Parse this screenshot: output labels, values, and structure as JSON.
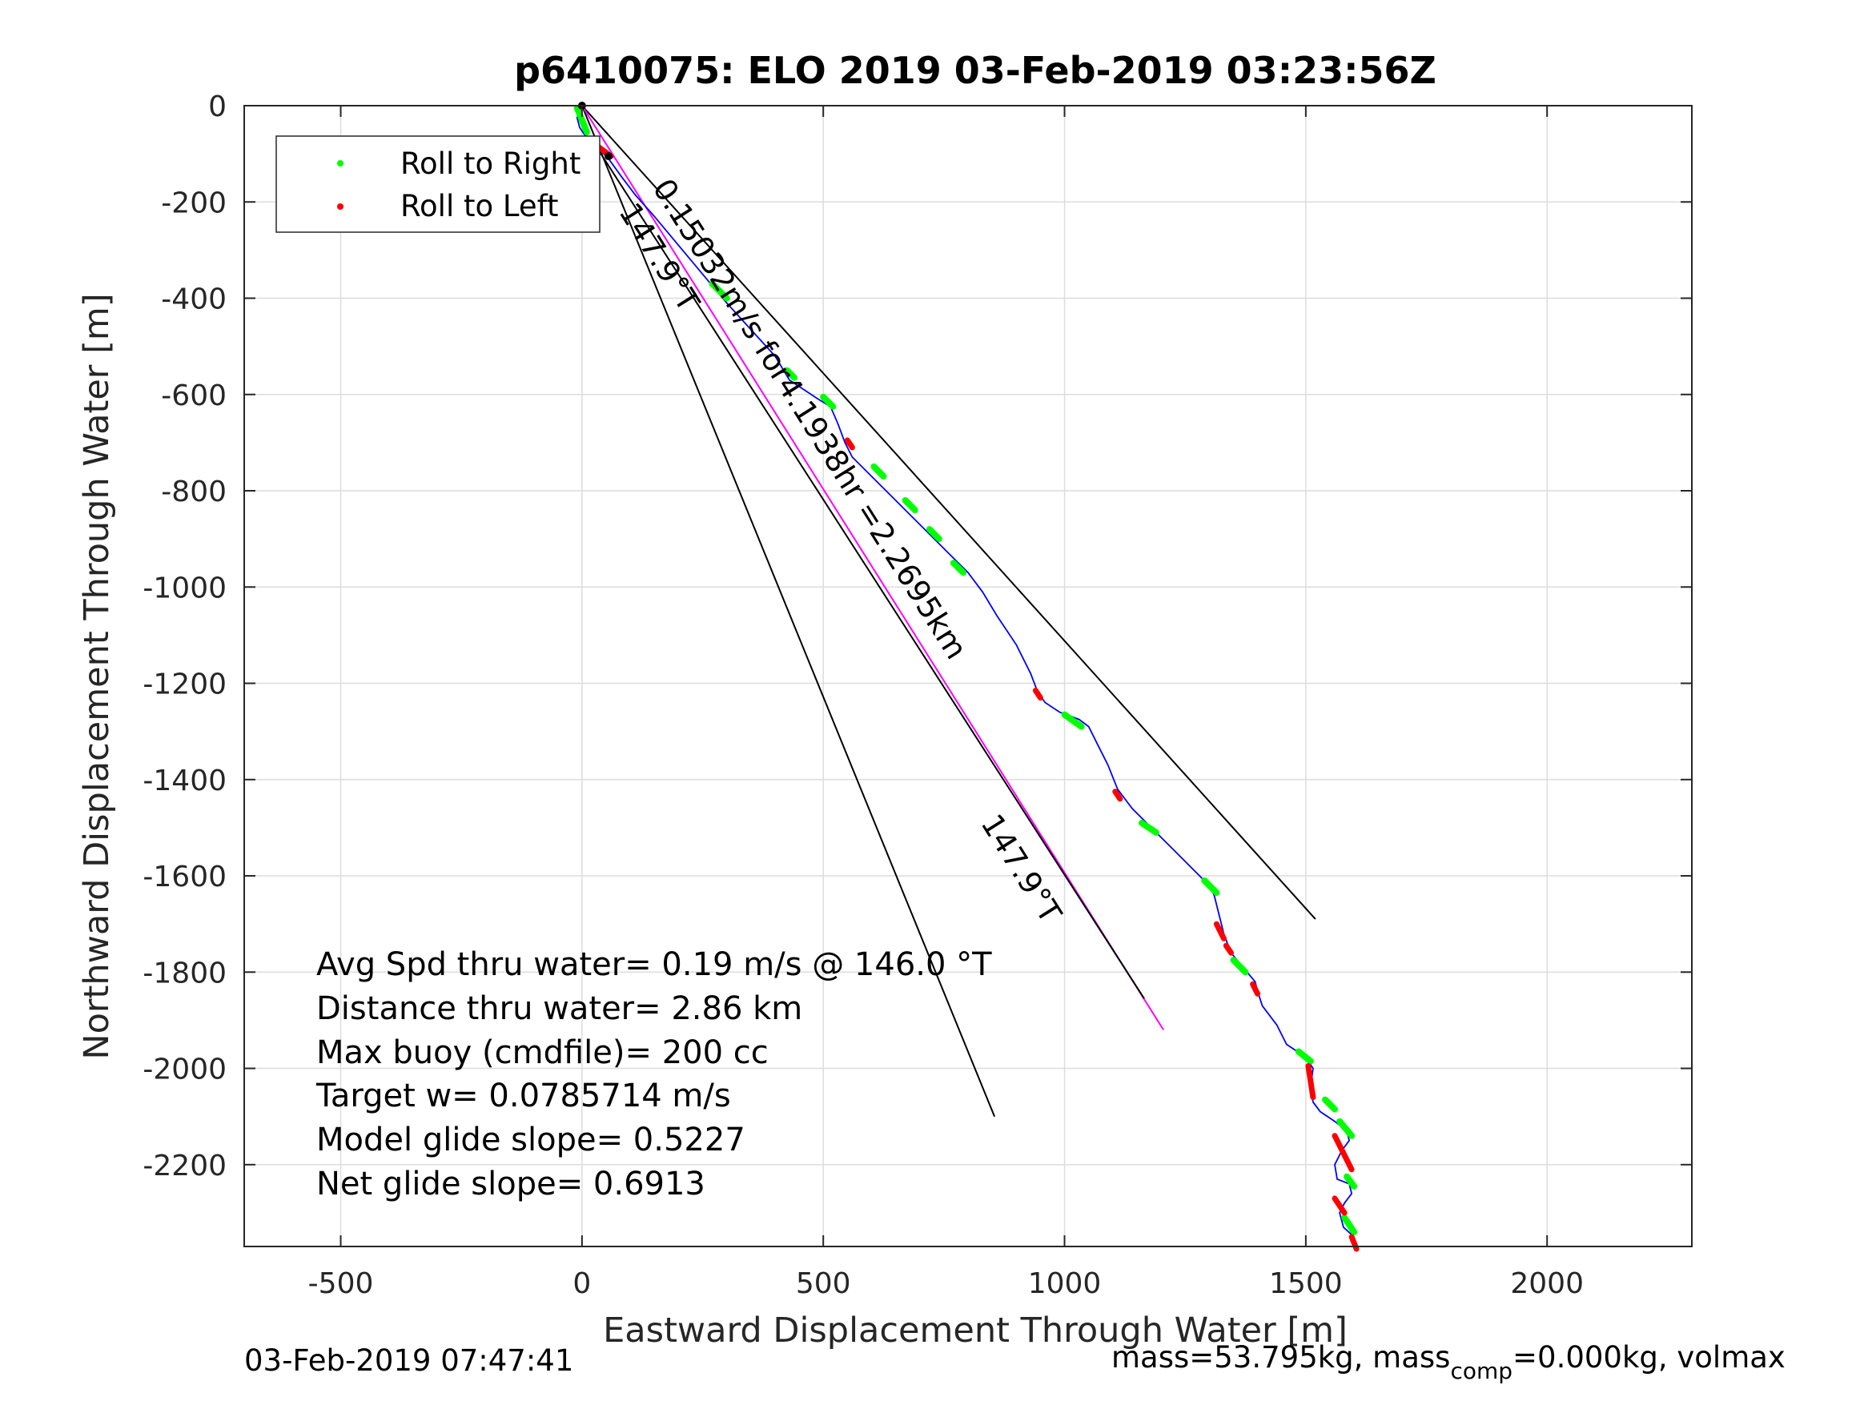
{
  "chart_data": {
    "type": "line",
    "title": "p6410075: ELO 2019 03-Feb-2019 03:23:56Z",
    "xlabel": "Eastward Displacement Through Water [m]",
    "ylabel": "Northward Displacement Through Water [m]",
    "xlim": [
      -700,
      2300
    ],
    "ylim": [
      -2370,
      0
    ],
    "xticks": [
      -500,
      0,
      500,
      1000,
      1500,
      2000
    ],
    "yticks": [
      0,
      -200,
      -400,
      -600,
      -800,
      -1000,
      -1200,
      -1400,
      -1600,
      -1800,
      -2000,
      -2200
    ],
    "grid": true,
    "legend": {
      "position": "top-left",
      "entries": [
        {
          "label": "Roll to Right",
          "color": "#00ff00"
        },
        {
          "label": "Roll to Left",
          "color": "#ff0000"
        }
      ]
    },
    "track": {
      "color": "#0000ff",
      "x": [
        0,
        -5,
        -10,
        -5,
        5,
        20,
        40,
        55,
        80,
        110,
        150,
        200,
        250,
        300,
        350,
        400,
        430,
        460,
        490,
        515,
        530,
        545,
        560,
        600,
        640,
        680,
        720,
        760,
        800,
        830,
        860,
        900,
        930,
        945,
        960,
        990,
        1030,
        1050,
        1070,
        1090,
        1110,
        1140,
        1180,
        1220,
        1260,
        1300,
        1310,
        1320,
        1330,
        1345,
        1370,
        1395,
        1400,
        1410,
        1440,
        1460,
        1475,
        1490,
        1505,
        1515,
        1510,
        1515,
        1530,
        1560,
        1585,
        1590,
        1575,
        1560,
        1565,
        1590,
        1595,
        1580,
        1570,
        1578,
        1600,
        1598
      ],
      "y": [
        0,
        -10,
        -25,
        -45,
        -60,
        -75,
        -95,
        -110,
        -145,
        -185,
        -230,
        -290,
        -350,
        -410,
        -465,
        -520,
        -570,
        -590,
        -610,
        -625,
        -660,
        -700,
        -730,
        -770,
        -810,
        -850,
        -890,
        -930,
        -970,
        -1010,
        -1060,
        -1120,
        -1180,
        -1220,
        -1240,
        -1260,
        -1275,
        -1290,
        -1330,
        -1370,
        -1420,
        -1460,
        -1500,
        -1540,
        -1580,
        -1620,
        -1640,
        -1680,
        -1720,
        -1760,
        -1790,
        -1820,
        -1840,
        -1870,
        -1910,
        -1950,
        -1960,
        -1970,
        -1985,
        -2000,
        -2040,
        -2070,
        -2090,
        -2110,
        -2130,
        -2150,
        -2170,
        -2200,
        -2230,
        -2240,
        -2260,
        -2280,
        -2300,
        -2330,
        -2350,
        -2370
      ]
    },
    "roll_right_segments": [
      {
        "x": [
          -10,
          10
        ],
        "y": [
          -5,
          -55
        ]
      },
      {
        "x": [
          270,
          300
        ],
        "y": [
          -370,
          -400
        ]
      },
      {
        "x": [
          425,
          440
        ],
        "y": [
          -550,
          -565
        ]
      },
      {
        "x": [
          500,
          520
        ],
        "y": [
          -605,
          -625
        ]
      },
      {
        "x": [
          605,
          625
        ],
        "y": [
          -750,
          -770
        ]
      },
      {
        "x": [
          670,
          690
        ],
        "y": [
          -820,
          -840
        ]
      },
      {
        "x": [
          720,
          740
        ],
        "y": [
          -880,
          -900
        ]
      },
      {
        "x": [
          770,
          790
        ],
        "y": [
          -950,
          -970
        ]
      },
      {
        "x": [
          1000,
          1035
        ],
        "y": [
          -1265,
          -1290
        ]
      },
      {
        "x": [
          1160,
          1190
        ],
        "y": [
          -1490,
          -1510
        ]
      },
      {
        "x": [
          1290,
          1315
        ],
        "y": [
          -1610,
          -1635
        ]
      },
      {
        "x": [
          1350,
          1375
        ],
        "y": [
          -1775,
          -1800
        ]
      },
      {
        "x": [
          1485,
          1510
        ],
        "y": [
          -1965,
          -1985
        ]
      },
      {
        "x": [
          1540,
          1560
        ],
        "y": [
          -2065,
          -2085
        ]
      },
      {
        "x": [
          1570,
          1595
        ],
        "y": [
          -2110,
          -2140
        ]
      },
      {
        "x": [
          1585,
          1600
        ],
        "y": [
          -2225,
          -2245
        ]
      },
      {
        "x": [
          1580,
          1600
        ],
        "y": [
          -2310,
          -2340
        ]
      }
    ],
    "roll_left_segments": [
      {
        "x": [
          20,
          60
        ],
        "y": [
          -75,
          -105
        ]
      },
      {
        "x": [
          550,
          560
        ],
        "y": [
          -695,
          -710
        ]
      },
      {
        "x": [
          940,
          950
        ],
        "y": [
          -1215,
          -1230
        ]
      },
      {
        "x": [
          1105,
          1115
        ],
        "y": [
          -1425,
          -1440
        ]
      },
      {
        "x": [
          1315,
          1330
        ],
        "y": [
          -1700,
          -1730
        ]
      },
      {
        "x": [
          1335,
          1345
        ],
        "y": [
          -1745,
          -1760
        ]
      },
      {
        "x": [
          1390,
          1400
        ],
        "y": [
          -1825,
          -1845
        ]
      },
      {
        "x": [
          1505,
          1515
        ],
        "y": [
          -1995,
          -2060
        ]
      },
      {
        "x": [
          1560,
          1595
        ],
        "y": [
          -2140,
          -2210
        ]
      },
      {
        "x": [
          1560,
          1580
        ],
        "y": [
          -2270,
          -2300
        ]
      },
      {
        "x": [
          1595,
          1605
        ],
        "y": [
          -2350,
          -2375
        ]
      }
    ],
    "black_markers": {
      "x": [
        0,
        22,
        55
      ],
      "y": [
        0,
        -73,
        -105
      ]
    },
    "reference_lines": [
      {
        "color": "#000000",
        "x": [
          0,
          1520
        ],
        "y": [
          0,
          -1690
        ]
      },
      {
        "color": "#000000",
        "x": [
          0,
          855
        ],
        "y": [
          0,
          -2100
        ]
      },
      {
        "color": "#ff00ff",
        "x": [
          0,
          1205
        ],
        "y": [
          0,
          -1920
        ]
      },
      {
        "color": "#000000",
        "x": [
          20,
          1165
        ],
        "y": [
          -70,
          -1855
        ]
      }
    ],
    "annotations": [
      {
        "text": "0.15032m/s for4.1938hr =2.2695km",
        "x": 145,
        "y": -170,
        "angle_deg": 57.8
      },
      {
        "text": "147.9°T",
        "x": 75,
        "y": -220,
        "angle_deg": 57.8
      },
      {
        "text": "147.9°T",
        "x": 825,
        "y": -1490,
        "angle_deg": 57.8
      }
    ],
    "stats": [
      "Avg Spd thru water=  0.19 m/s @ 146.0 °T",
      "Distance thru water=  2.86 km",
      "Max buoy (cmdfile)= 200 cc",
      "Target w= 0.0785714 m/s",
      "Model glide slope= 0.5227",
      "Net glide slope= 0.6913"
    ]
  },
  "footer": {
    "timestamp": "03-Feb-2019 07:47:41",
    "mass_prefix": "mass=53.795kg, mass",
    "mass_sub": "comp",
    "mass_suffix": "=0.000kg, volmax"
  }
}
